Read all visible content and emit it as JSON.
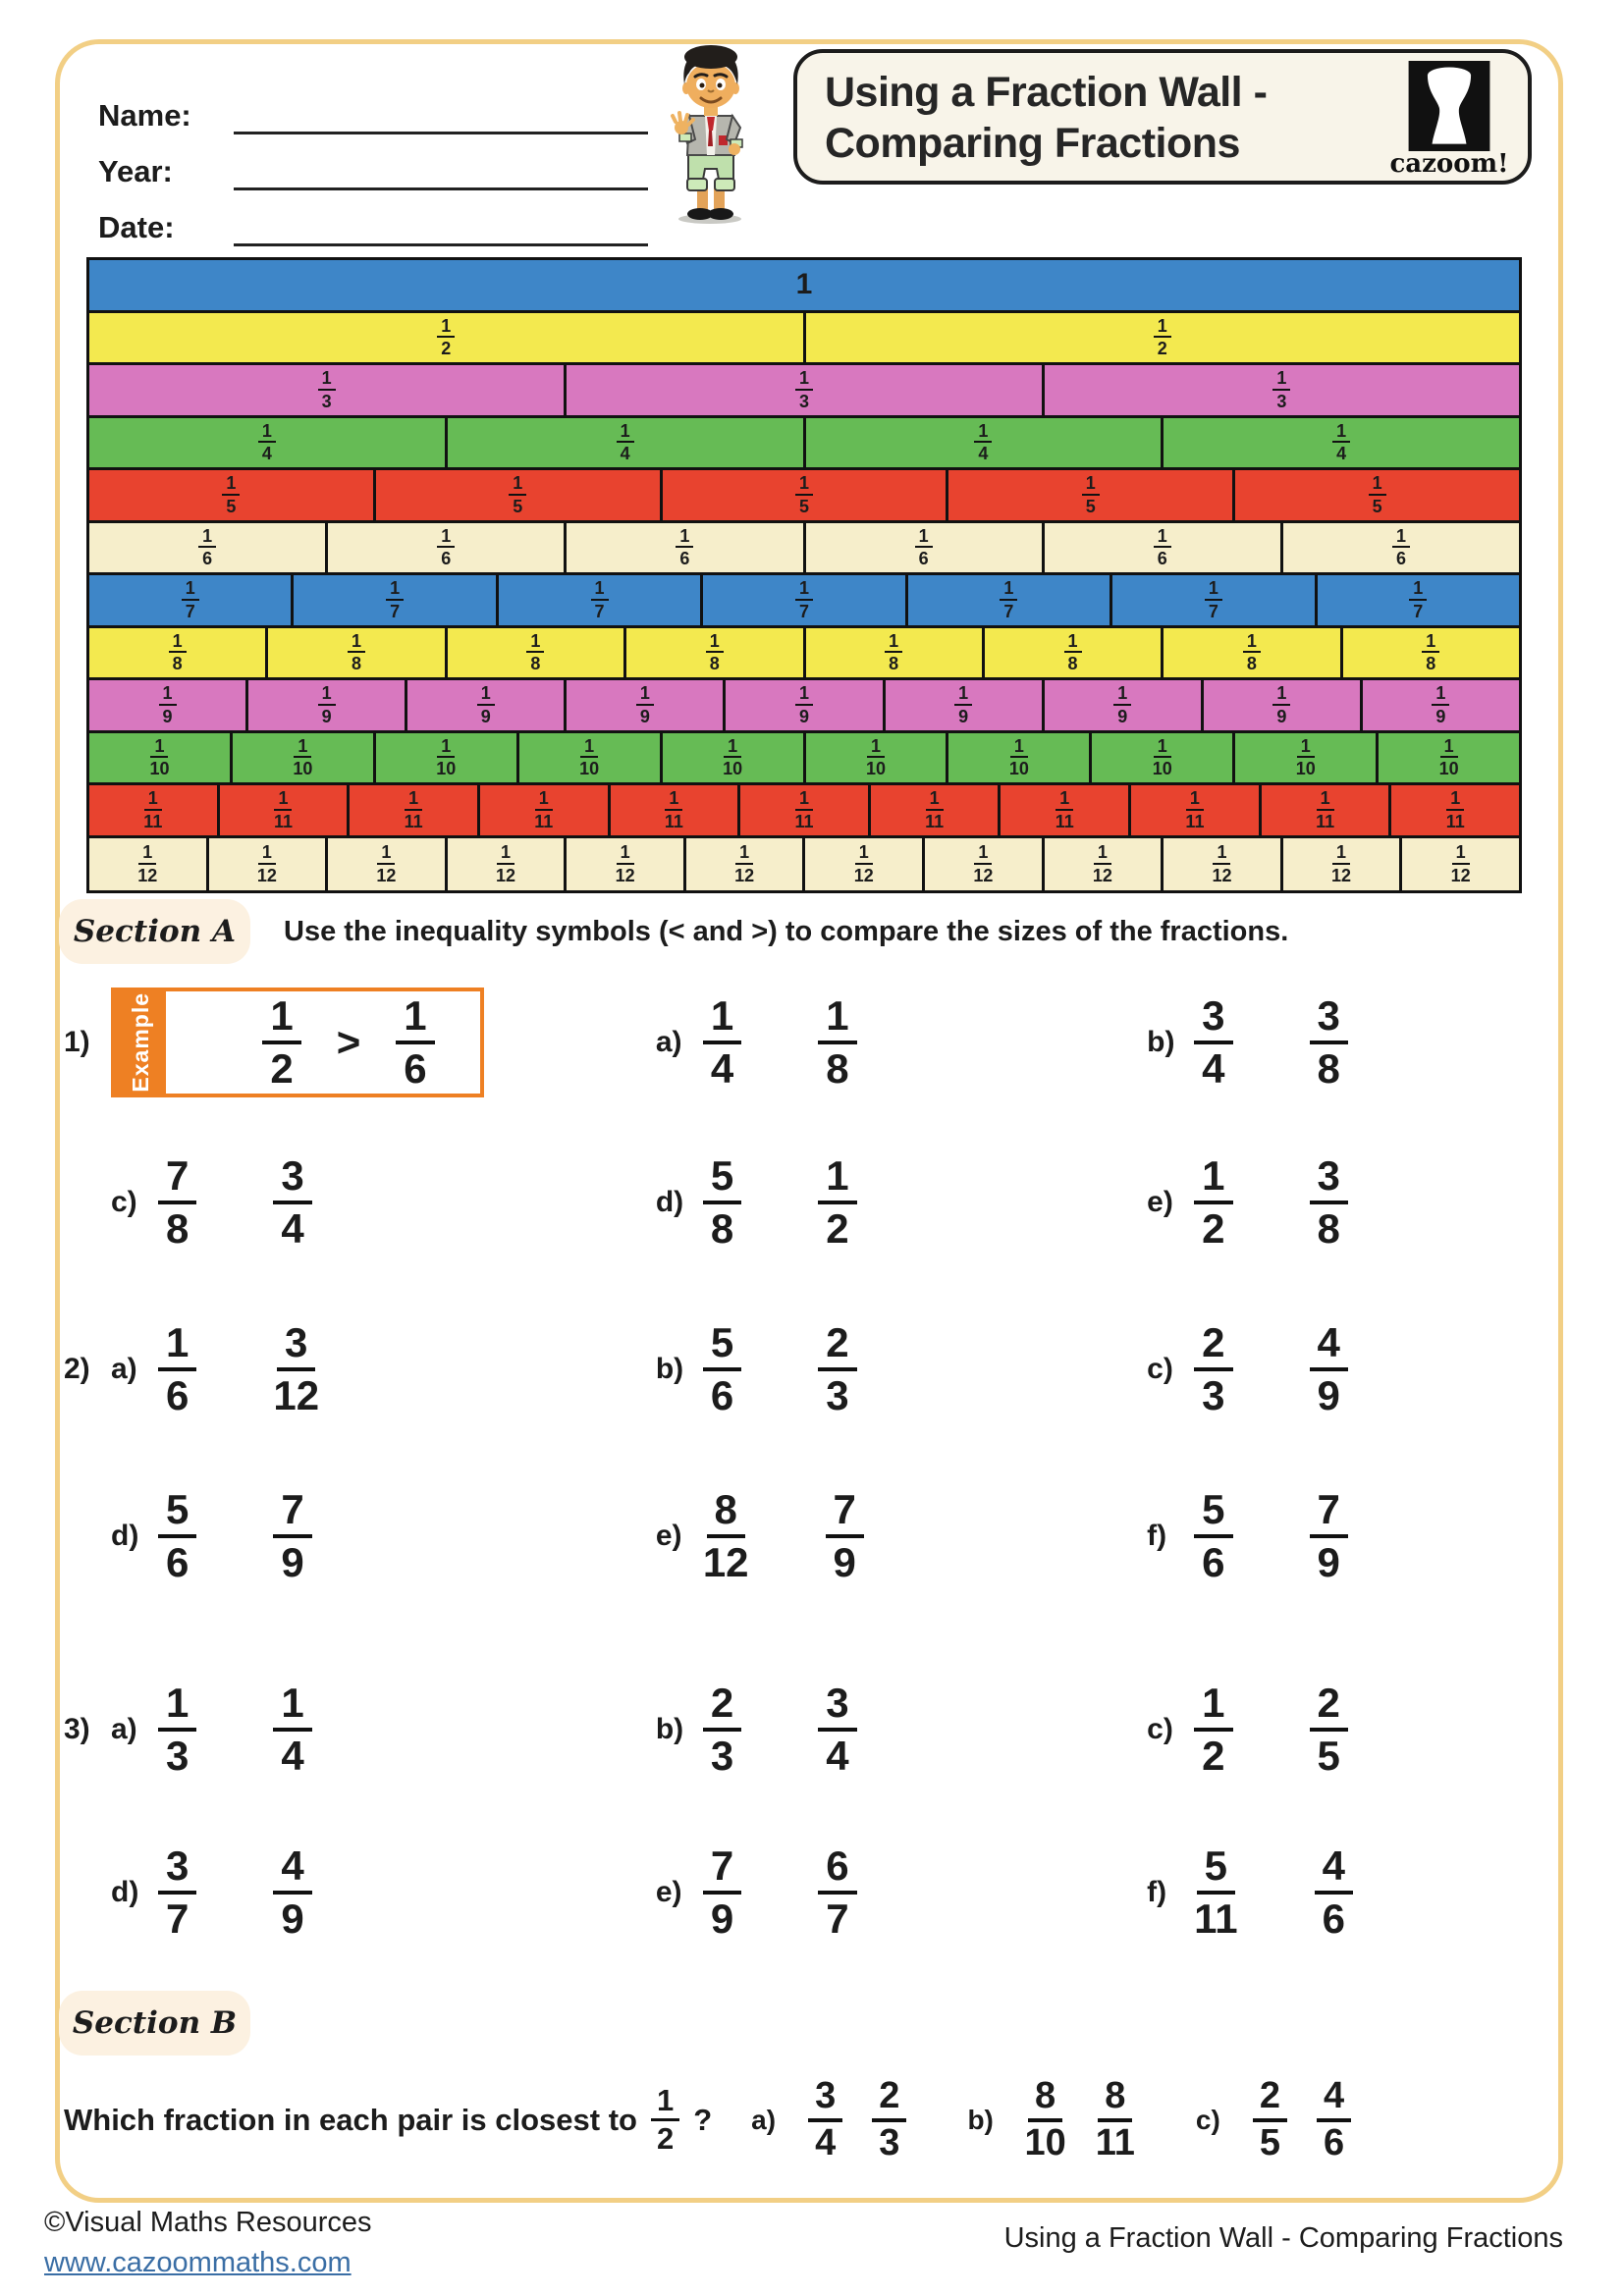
{
  "header": {
    "fields": [
      "Name:",
      "Year:",
      "Date:"
    ],
    "title_line1": "Using a Fraction Wall -",
    "title_line2": "Comparing Fractions",
    "logo_text": "cazoom!"
  },
  "fraction_wall": {
    "rows": [
      {
        "parts": 1,
        "numerator": "1",
        "denominator": "",
        "color_index": 0
      },
      {
        "parts": 2,
        "numerator": "1",
        "denominator": "2",
        "color_index": 1
      },
      {
        "parts": 3,
        "numerator": "1",
        "denominator": "3",
        "color_index": 2
      },
      {
        "parts": 4,
        "numerator": "1",
        "denominator": "4",
        "color_index": 3
      },
      {
        "parts": 5,
        "numerator": "1",
        "denominator": "5",
        "color_index": 4
      },
      {
        "parts": 6,
        "numerator": "1",
        "denominator": "6",
        "color_index": 5
      },
      {
        "parts": 7,
        "numerator": "1",
        "denominator": "7",
        "color_index": 0
      },
      {
        "parts": 8,
        "numerator": "1",
        "denominator": "8",
        "color_index": 1
      },
      {
        "parts": 9,
        "numerator": "1",
        "denominator": "9",
        "color_index": 2
      },
      {
        "parts": 10,
        "numerator": "1",
        "denominator": "10",
        "color_index": 3
      },
      {
        "parts": 11,
        "numerator": "1",
        "denominator": "11",
        "color_index": 4
      },
      {
        "parts": 12,
        "numerator": "1",
        "denominator": "12",
        "color_index": 5
      }
    ]
  },
  "section_a": {
    "label": "Section A",
    "instruction": "Use the inequality symbols (< and >) to compare the sizes of the fractions.",
    "rows": [
      {
        "number": "1)",
        "items": [
          {
            "type": "example",
            "tab": "Example",
            "f1": [
              "1",
              "2"
            ],
            "symbol": ">",
            "f2": [
              "1",
              "6"
            ]
          },
          {
            "type": "pair",
            "letter": "a)",
            "f1": [
              "1",
              "4"
            ],
            "f2": [
              "1",
              "8"
            ]
          },
          {
            "type": "pair",
            "letter": "b)",
            "f1": [
              "3",
              "4"
            ],
            "f2": [
              "3",
              "8"
            ]
          }
        ]
      },
      {
        "number": "",
        "items": [
          {
            "type": "pair",
            "letter": "c)",
            "f1": [
              "7",
              "8"
            ],
            "f2": [
              "3",
              "4"
            ]
          },
          {
            "type": "pair",
            "letter": "d)",
            "f1": [
              "5",
              "8"
            ],
            "f2": [
              "1",
              "2"
            ]
          },
          {
            "type": "pair",
            "letter": "e)",
            "f1": [
              "1",
              "2"
            ],
            "f2": [
              "3",
              "8"
            ]
          }
        ]
      },
      {
        "number": "2)",
        "items": [
          {
            "type": "pair",
            "letter": "a)",
            "f1": [
              "1",
              "6"
            ],
            "f2": [
              "3",
              "12"
            ]
          },
          {
            "type": "pair",
            "letter": "b)",
            "f1": [
              "5",
              "6"
            ],
            "f2": [
              "2",
              "3"
            ]
          },
          {
            "type": "pair",
            "letter": "c)",
            "f1": [
              "2",
              "3"
            ],
            "f2": [
              "4",
              "9"
            ]
          }
        ]
      },
      {
        "number": "",
        "items": [
          {
            "type": "pair",
            "letter": "d)",
            "f1": [
              "5",
              "6"
            ],
            "f2": [
              "7",
              "9"
            ]
          },
          {
            "type": "pair",
            "letter": "e)",
            "f1": [
              "8",
              "12"
            ],
            "f2": [
              "7",
              "9"
            ]
          },
          {
            "type": "pair",
            "letter": "f)",
            "f1": [
              "5",
              "6"
            ],
            "f2": [
              "7",
              "9"
            ]
          }
        ]
      },
      {
        "number": "3)",
        "items": [
          {
            "type": "pair",
            "letter": "a)",
            "f1": [
              "1",
              "3"
            ],
            "f2": [
              "1",
              "4"
            ]
          },
          {
            "type": "pair",
            "letter": "b)",
            "f1": [
              "2",
              "3"
            ],
            "f2": [
              "3",
              "4"
            ]
          },
          {
            "type": "pair",
            "letter": "c)",
            "f1": [
              "1",
              "2"
            ],
            "f2": [
              "2",
              "5"
            ]
          }
        ]
      },
      {
        "number": "",
        "items": [
          {
            "type": "pair",
            "letter": "d)",
            "f1": [
              "3",
              "7"
            ],
            "f2": [
              "4",
              "9"
            ]
          },
          {
            "type": "pair",
            "letter": "e)",
            "f1": [
              "7",
              "9"
            ],
            "f2": [
              "6",
              "7"
            ]
          },
          {
            "type": "pair",
            "letter": "f)",
            "f1": [
              "5",
              "11"
            ],
            "f2": [
              "4",
              "6"
            ]
          }
        ]
      }
    ]
  },
  "section_b": {
    "label": "Section B",
    "question_prefix": "Which fraction in each pair is closest to",
    "target": [
      "1",
      "2"
    ],
    "question_suffix": "?",
    "items": [
      {
        "letter": "a)",
        "f1": [
          "3",
          "4"
        ],
        "f2": [
          "2",
          "3"
        ]
      },
      {
        "letter": "b)",
        "f1": [
          "8",
          "10"
        ],
        "f2": [
          "8",
          "11"
        ]
      },
      {
        "letter": "c)",
        "f1": [
          "2",
          "5"
        ],
        "f2": [
          "4",
          "6"
        ]
      }
    ]
  },
  "footer": {
    "copyright": "©Visual Maths Resources",
    "url": "www.cazoommaths.com",
    "title": "Using a Fraction Wall - Comparing Fractions"
  },
  "colors": {
    "page_border": "#f2cf85",
    "accent_orange": "#ee8023",
    "link_blue": "#3a6ea5",
    "section_label_bg": "#fcf1e1",
    "title_box_bg": "#f8f4e9",
    "wall_palette": [
      "#3e86c8",
      "#f3e94f",
      "#d878bf",
      "#66bb55",
      "#e8432f",
      "#f6eecb"
    ]
  }
}
